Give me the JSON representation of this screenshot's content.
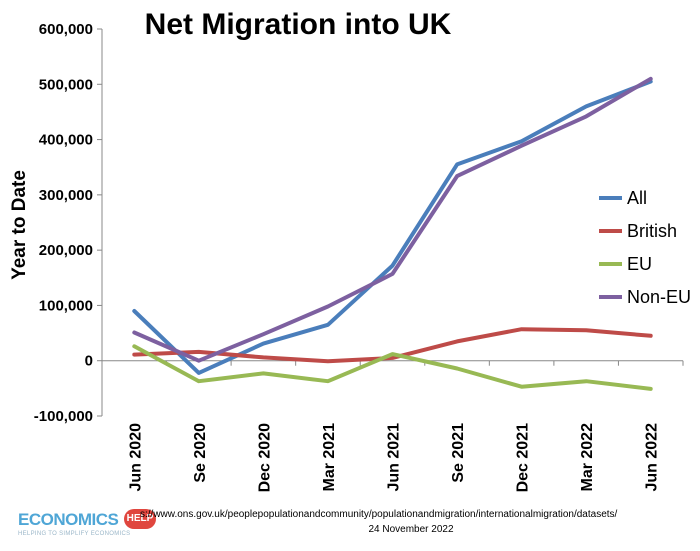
{
  "chart_data": {
    "type": "line",
    "title": "Net Migration into UK",
    "xlabel": "",
    "ylabel": "Year to Date",
    "categories": [
      "Jun 2020",
      "Se 2020",
      "Dec 2020",
      "Mar 2021",
      "Jun 2021",
      "Se 2021",
      "Dec 2021",
      "Mar 2022",
      "Jun 2022"
    ],
    "ylim": [
      -100000,
      600000
    ],
    "yticks": [
      -100000,
      0,
      100000,
      200000,
      300000,
      400000,
      500000,
      600000
    ],
    "ytick_labels": [
      "-100,000",
      "0",
      "100,000",
      "200,000",
      "300,000",
      "400,000",
      "500,000",
      "600,000"
    ],
    "grid": false,
    "legend_position": "right",
    "series": [
      {
        "name": "All",
        "color": "#4a7ebb",
        "values": [
          90000,
          -22000,
          31000,
          65000,
          172000,
          355000,
          397000,
          460000,
          505000
        ]
      },
      {
        "name": "British",
        "color": "#be4b48",
        "values": [
          11000,
          16000,
          6000,
          -1000,
          5000,
          35000,
          57000,
          55000,
          45000
        ]
      },
      {
        "name": "EU",
        "color": "#98b954",
        "values": [
          26000,
          -37000,
          -23000,
          -37000,
          12000,
          -14000,
          -47000,
          -37000,
          -51000
        ]
      },
      {
        "name": "Non-EU",
        "color": "#7d60a0",
        "values": [
          51000,
          0,
          48000,
          98000,
          157000,
          334000,
          389000,
          442000,
          510000
        ]
      }
    ]
  },
  "footer": {
    "logo_word": "ECONOMICS",
    "logo_badge": "HELP",
    "logo_tagline": "HELPING TO SIMPLIFY ECONOMICS",
    "source_line": "s://www.ons.gov.uk/peoplepopulationandcommunity/populationandmigration/internationalmigration/datasets/",
    "source_date": "24 November 2022"
  }
}
